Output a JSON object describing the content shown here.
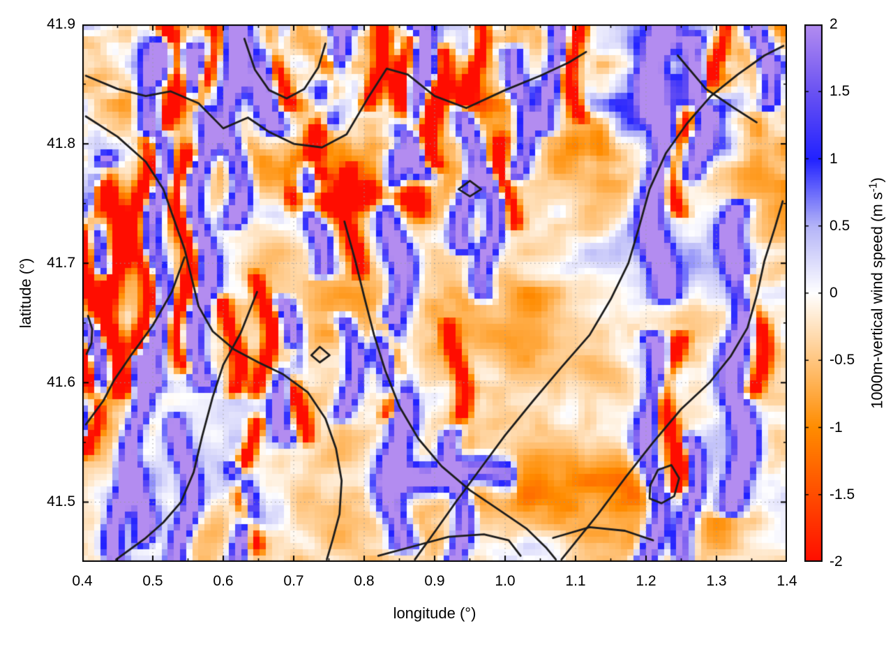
{
  "figure": {
    "background": "#ffffff"
  },
  "chart_data": {
    "type": "heatmap",
    "title": "",
    "xlabel": "longitude (°)",
    "ylabel": "latitude (°)",
    "colorbar_label_prefix": "1000m-vertical wind speed (m s",
    "colorbar_label_sup": "-1",
    "colorbar_label_suffix": ")",
    "xlim": [
      0.4,
      1.4
    ],
    "ylim": [
      41.45,
      41.9
    ],
    "zlim": [
      -2,
      2
    ],
    "x_ticks": [
      0.4,
      0.5,
      0.6,
      0.7,
      0.8,
      0.9,
      1.0,
      1.1,
      1.2,
      1.3,
      1.4
    ],
    "x_tick_labels": [
      "0.4",
      "0.5",
      "0.6",
      "0.7",
      "0.8",
      "0.9",
      "1.0",
      "1.1",
      "1.2",
      "1.3",
      "1.4"
    ],
    "x_minor_ticks": [
      0.45,
      0.55,
      0.65,
      0.75,
      0.85,
      0.95,
      1.05,
      1.15,
      1.25,
      1.35
    ],
    "y_ticks": [
      41.5,
      41.6,
      41.7,
      41.8,
      41.9
    ],
    "y_tick_labels": [
      "41.5",
      "41.6",
      "41.7",
      "41.8",
      "41.9"
    ],
    "y_minor_ticks": [
      41.55,
      41.65,
      41.75,
      41.85
    ],
    "grid": "dotted-major",
    "grid_color": "#9a9a9a",
    "contour_color": "#1c1c1c",
    "colorbar_ticks": [
      2,
      1.5,
      1,
      0.5,
      0,
      -0.5,
      -1,
      -1.5,
      -2
    ],
    "colorbar_tick_labels": [
      "2",
      "1.5",
      "1",
      "0.5",
      "0",
      "-0.5",
      "-1",
      "-1.5",
      "-2"
    ],
    "palette": [
      {
        "v": -2.0,
        "c": "#ff0d00"
      },
      {
        "v": -1.0,
        "c": "#ff8c00"
      },
      {
        "v": 0.0,
        "c": "#ffffff"
      },
      {
        "v": 0.5,
        "c": "#b4b4f7"
      },
      {
        "v": 1.0,
        "c": "#2222ff"
      },
      {
        "v": 1.5,
        "c": "#6a52f2"
      },
      {
        "v": 2.0,
        "c": "#b38cf0"
      }
    ],
    "field": {
      "seed": 11,
      "nx": 115,
      "ny": 86,
      "bias": -0.3,
      "top_boost": 1.15,
      "wobble_amp": 0.012,
      "wobble_freq": 55,
      "octaves": [
        {
          "fx": 5,
          "fy": 7,
          "amp": 0.5
        },
        {
          "fx": 11,
          "fy": 14,
          "amp": 0.38
        },
        {
          "fx": 22,
          "fy": 26,
          "amp": 0.27
        },
        {
          "fx": 46,
          "fy": 40,
          "amp": 0.16
        }
      ],
      "streaks": [
        [
          0.415,
          41.56,
          41.645,
          2.8,
          0.01
        ],
        [
          0.425,
          41.695,
          41.785,
          2.8,
          0.01
        ],
        [
          0.455,
          41.45,
          41.525,
          2.8,
          0.01
        ],
        [
          0.478,
          41.47,
          41.62,
          2.8,
          0.01
        ],
        [
          0.505,
          41.6,
          41.88,
          3.0,
          0.013
        ],
        [
          0.545,
          41.45,
          41.565,
          2.8,
          0.01
        ],
        [
          0.567,
          41.6,
          41.875,
          3.0,
          0.012
        ],
        [
          0.615,
          41.735,
          41.9,
          3.0,
          0.012
        ],
        [
          0.625,
          41.45,
          41.525,
          2.8,
          0.01
        ],
        [
          0.667,
          41.815,
          41.9,
          2.8,
          0.011
        ],
        [
          0.69,
          41.555,
          41.665,
          2.8,
          0.01
        ],
        [
          0.732,
          41.695,
          41.78,
          2.8,
          0.011
        ],
        [
          0.757,
          41.82,
          41.9,
          2.8,
          0.011
        ],
        [
          0.778,
          41.575,
          41.65,
          2.6,
          0.01
        ],
        [
          0.845,
          41.465,
          41.79,
          3.0,
          0.014
        ],
        [
          0.877,
          41.775,
          41.9,
          3.0,
          0.012
        ],
        [
          0.932,
          41.45,
          41.555,
          2.8,
          0.01
        ],
        [
          0.947,
          41.715,
          41.825,
          2.8,
          0.011
        ],
        [
          0.977,
          41.675,
          41.775,
          2.6,
          0.011
        ],
        [
          1.022,
          41.775,
          41.875,
          2.8,
          0.011
        ],
        [
          1.067,
          41.815,
          41.9,
          2.6,
          0.01
        ],
        [
          1.21,
          41.45,
          41.635,
          2.9,
          0.012
        ],
        [
          1.217,
          41.675,
          41.9,
          3.0,
          0.014
        ],
        [
          1.262,
          41.45,
          41.55,
          2.7,
          0.01
        ],
        [
          1.277,
          41.775,
          41.885,
          2.8,
          0.011
        ],
        [
          1.332,
          41.495,
          41.745,
          3.0,
          0.013
        ],
        [
          1.367,
          41.835,
          41.9,
          2.7,
          0.01
        ],
        [
          0.408,
          41.545,
          41.625,
          -2.8,
          0.008
        ],
        [
          0.412,
          41.665,
          41.76,
          -2.9,
          0.009
        ],
        [
          0.445,
          41.595,
          41.775,
          -3.0,
          0.01
        ],
        [
          0.487,
          41.625,
          41.8,
          -3.0,
          0.01
        ],
        [
          0.527,
          41.815,
          41.9,
          -2.8,
          0.009
        ],
        [
          0.545,
          41.615,
          41.79,
          -3.0,
          0.01
        ],
        [
          0.578,
          41.835,
          41.9,
          -2.7,
          0.008
        ],
        [
          0.612,
          41.595,
          41.665,
          -2.6,
          0.008
        ],
        [
          0.636,
          41.465,
          41.565,
          -2.8,
          0.008
        ],
        [
          0.657,
          41.595,
          41.685,
          -2.6,
          0.008
        ],
        [
          0.682,
          41.835,
          41.9,
          -2.7,
          0.009
        ],
        [
          0.707,
          41.555,
          41.625,
          -2.5,
          0.008
        ],
        [
          0.742,
          41.775,
          41.865,
          -2.8,
          0.009
        ],
        [
          0.782,
          41.695,
          41.775,
          -2.7,
          0.008
        ],
        [
          0.817,
          41.835,
          41.9,
          -2.7,
          0.009
        ],
        [
          0.837,
          41.575,
          41.645,
          -2.6,
          0.008
        ],
        [
          0.862,
          41.815,
          41.885,
          -2.9,
          0.009
        ],
        [
          0.902,
          41.785,
          41.875,
          -2.9,
          0.01
        ],
        [
          0.932,
          41.575,
          41.645,
          -2.5,
          0.008
        ],
        [
          0.957,
          41.835,
          41.9,
          -2.6,
          0.008
        ],
        [
          1.002,
          41.735,
          41.8,
          -2.5,
          0.008
        ],
        [
          1.102,
          41.825,
          41.895,
          -2.6,
          0.009
        ],
        [
          1.237,
          41.515,
          41.635,
          -2.8,
          0.009
        ],
        [
          1.247,
          41.745,
          41.825,
          -2.7,
          0.009
        ],
        [
          1.302,
          41.835,
          41.9,
          -2.6,
          0.008
        ],
        [
          1.357,
          41.595,
          41.685,
          -2.6,
          0.009
        ]
      ],
      "h_bands": [
        [
          41.753,
          0.7,
          0.88,
          -2.6,
          0.008
        ],
        [
          41.523,
          0.855,
          1.005,
          3.0,
          0.009
        ]
      ]
    },
    "contours": [
      [
        [
          0.405,
          41.857
        ],
        [
          0.45,
          41.846
        ],
        [
          0.49,
          41.84
        ],
        [
          0.525,
          41.844
        ],
        [
          0.565,
          41.834
        ],
        [
          0.6,
          41.813
        ],
        [
          0.635,
          41.822
        ],
        [
          0.665,
          41.81
        ],
        [
          0.7,
          41.8
        ],
        [
          0.74,
          41.797
        ],
        [
          0.775,
          41.808
        ],
        [
          0.805,
          41.838
        ],
        [
          0.832,
          41.863
        ],
        [
          0.862,
          41.858
        ],
        [
          0.9,
          41.84
        ],
        [
          0.945,
          41.83
        ],
        [
          1.0,
          41.845
        ],
        [
          1.05,
          41.857
        ],
        [
          1.09,
          41.868
        ],
        [
          1.115,
          41.877
        ]
      ],
      [
        [
          0.405,
          41.823
        ],
        [
          0.45,
          41.806
        ],
        [
          0.49,
          41.785
        ],
        [
          0.515,
          41.762
        ],
        [
          0.53,
          41.737
        ],
        [
          0.545,
          41.712
        ],
        [
          0.555,
          41.688
        ],
        [
          0.565,
          41.664
        ],
        [
          0.585,
          41.643
        ],
        [
          0.615,
          41.628
        ],
        [
          0.65,
          41.617
        ],
        [
          0.685,
          41.607
        ],
        [
          0.72,
          41.592
        ],
        [
          0.745,
          41.57
        ],
        [
          0.76,
          41.545
        ],
        [
          0.768,
          41.518
        ],
        [
          0.765,
          41.49
        ],
        [
          0.755,
          41.468
        ],
        [
          0.747,
          41.452
        ]
      ],
      [
        [
          0.545,
          41.705
        ],
        [
          0.527,
          41.676
        ],
        [
          0.5,
          41.648
        ],
        [
          0.468,
          41.622
        ],
        [
          0.445,
          41.602
        ],
        [
          0.43,
          41.585
        ],
        [
          0.405,
          41.565
        ]
      ],
      [
        [
          0.648,
          41.676
        ],
        [
          0.625,
          41.642
        ],
        [
          0.6,
          41.615
        ],
        [
          0.585,
          41.588
        ],
        [
          0.57,
          41.555
        ],
        [
          0.558,
          41.525
        ],
        [
          0.54,
          41.5
        ],
        [
          0.515,
          41.483
        ],
        [
          0.49,
          41.47
        ],
        [
          0.462,
          41.458
        ],
        [
          0.448,
          41.452
        ]
      ],
      [
        [
          0.772,
          41.735
        ],
        [
          0.787,
          41.703
        ],
        [
          0.8,
          41.672
        ],
        [
          0.814,
          41.64
        ],
        [
          0.83,
          41.61
        ],
        [
          0.85,
          41.58
        ],
        [
          0.877,
          41.553
        ],
        [
          0.91,
          41.53
        ],
        [
          0.95,
          41.51
        ],
        [
          0.99,
          41.494
        ],
        [
          1.03,
          41.478
        ],
        [
          1.058,
          41.462
        ],
        [
          1.072,
          41.452
        ]
      ],
      [
        [
          0.872,
          41.452
        ],
        [
          0.9,
          41.475
        ],
        [
          0.93,
          41.5
        ],
        [
          0.965,
          41.528
        ],
        [
          1.0,
          41.556
        ],
        [
          1.04,
          41.585
        ],
        [
          1.08,
          41.613
        ],
        [
          1.12,
          41.64
        ],
        [
          1.15,
          41.67
        ],
        [
          1.175,
          41.7
        ],
        [
          1.19,
          41.73
        ],
        [
          1.205,
          41.762
        ],
        [
          1.228,
          41.792
        ],
        [
          1.258,
          41.817
        ],
        [
          1.292,
          41.84
        ],
        [
          1.33,
          41.858
        ],
        [
          1.368,
          41.874
        ],
        [
          1.395,
          41.882
        ]
      ],
      [
        [
          1.08,
          41.452
        ],
        [
          1.102,
          41.468
        ],
        [
          1.132,
          41.49
        ],
        [
          1.17,
          41.52
        ],
        [
          1.21,
          41.55
        ],
        [
          1.25,
          41.578
        ],
        [
          1.29,
          41.6
        ],
        [
          1.32,
          41.622
        ],
        [
          1.344,
          41.646
        ],
        [
          1.358,
          41.675
        ],
        [
          1.368,
          41.702
        ],
        [
          1.383,
          41.73
        ],
        [
          1.394,
          41.752
        ]
      ],
      [
        [
          0.63,
          41.888
        ],
        [
          0.645,
          41.862
        ],
        [
          0.665,
          41.845
        ],
        [
          0.69,
          41.838
        ],
        [
          0.715,
          41.846
        ],
        [
          0.735,
          41.864
        ],
        [
          0.745,
          41.884
        ]
      ],
      [
        [
          1.245,
          41.874
        ],
        [
          1.285,
          41.846
        ],
        [
          1.325,
          41.83
        ],
        [
          1.357,
          41.818
        ]
      ],
      [
        [
          1.205,
          41.503
        ],
        [
          1.222,
          41.499
        ],
        [
          1.24,
          41.505
        ],
        [
          1.247,
          41.52
        ],
        [
          1.236,
          41.531
        ],
        [
          1.217,
          41.527
        ],
        [
          1.206,
          41.514
        ],
        [
          1.205,
          41.503
        ]
      ],
      [
        [
          0.725,
          41.623
        ],
        [
          0.737,
          41.617
        ],
        [
          0.751,
          41.623
        ],
        [
          0.737,
          41.63
        ],
        [
          0.725,
          41.623
        ]
      ],
      [
        [
          0.934,
          41.762
        ],
        [
          0.95,
          41.756
        ],
        [
          0.966,
          41.762
        ],
        [
          0.95,
          41.769
        ],
        [
          0.934,
          41.762
        ]
      ],
      [
        [
          0.82,
          41.455
        ],
        [
          0.87,
          41.463
        ],
        [
          0.92,
          41.471
        ],
        [
          0.97,
          41.473
        ],
        [
          1.005,
          41.468
        ],
        [
          1.022,
          41.455
        ]
      ],
      [
        [
          1.068,
          41.47
        ],
        [
          1.12,
          41.479
        ],
        [
          1.17,
          41.476
        ],
        [
          1.21,
          41.468
        ]
      ],
      [
        [
          0.408,
          41.656
        ],
        [
          0.414,
          41.645
        ],
        [
          0.413,
          41.633
        ],
        [
          0.406,
          41.624
        ]
      ]
    ]
  }
}
